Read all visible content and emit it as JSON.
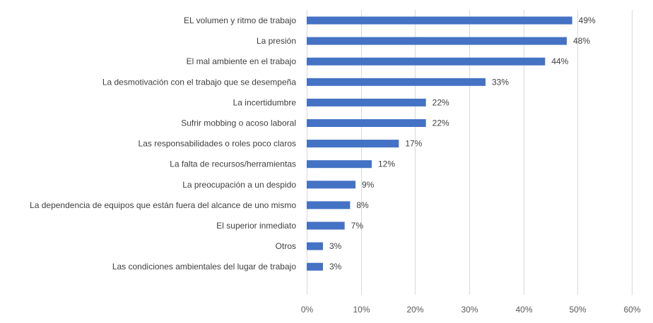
{
  "chart_data": {
    "type": "bar",
    "orientation": "horizontal",
    "title": "",
    "xlabel": "",
    "ylabel": "",
    "categories": [
      "EL volumen y ritmo de trabajo",
      "La presión",
      "El mal ambiente en el trabajo",
      "La desmotivación con el trabajo que se desempeña",
      "La incertidumbre",
      "Sufrir mobbing o acoso laboral",
      "Las responsabilidades o roles poco claros",
      "La falta de recursos/herramientas",
      "La preocupación a un despido",
      "La dependencia de equipos que están fuera del alcance de uno mismo",
      "El superior inmediato",
      "Otros",
      "Las condiciones ambientales del lugar de trabajo"
    ],
    "values": [
      49,
      48,
      44,
      33,
      22,
      22,
      17,
      12,
      9,
      8,
      7,
      3,
      3
    ],
    "data_labels": [
      "49%",
      "48%",
      "44%",
      "33%",
      "22%",
      "22%",
      "17%",
      "12%",
      "9%",
      "8%",
      "7%",
      "3%",
      "3%"
    ],
    "xlim": [
      0,
      60
    ],
    "x_ticks": [
      0,
      10,
      20,
      30,
      40,
      50,
      60
    ],
    "x_tick_labels": [
      "0%",
      "10%",
      "20%",
      "30%",
      "40%",
      "50%",
      "60%"
    ],
    "grid": "vertical",
    "legend": "none",
    "bar_color": "#4472c4"
  }
}
